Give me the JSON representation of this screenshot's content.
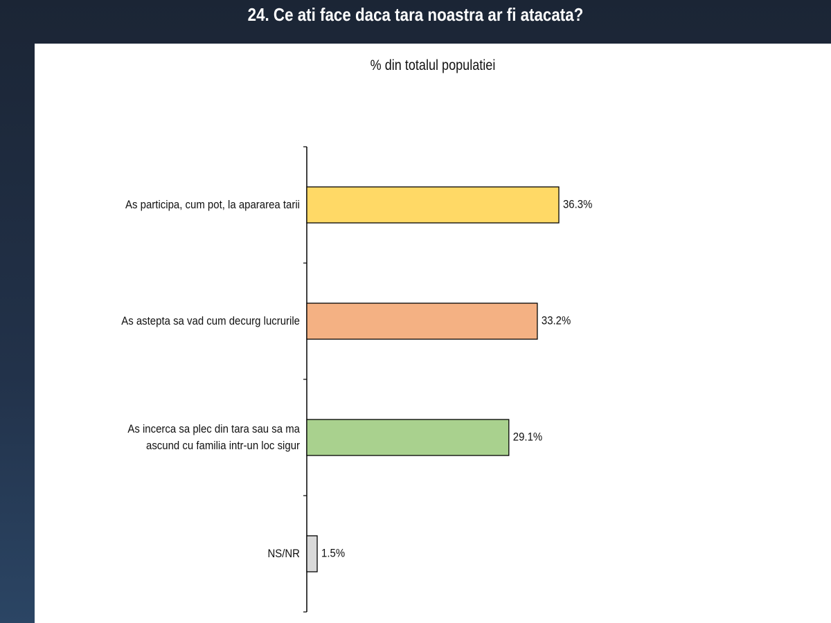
{
  "chart_data": {
    "type": "hbar",
    "title": "24. Ce ati face daca tara noastra ar fi atacata?",
    "subtitle": "% din totalul populatiei",
    "categories": [
      "As participa, cum pot, la apararea tarii",
      "As astepta sa vad cum decurg lucrurile",
      "As incerca sa plec din tara sau sa ma ascund cu familia intr-un loc sigur",
      "NS/NR"
    ],
    "values": [
      36.3,
      33.2,
      29.1,
      1.5
    ],
    "value_labels": [
      "36.3%",
      "33.2%",
      "29.1%",
      "1.5%"
    ],
    "colors": [
      "#ffd966",
      "#f4b183",
      "#a9d18e",
      "#d9d9d9"
    ]
  }
}
